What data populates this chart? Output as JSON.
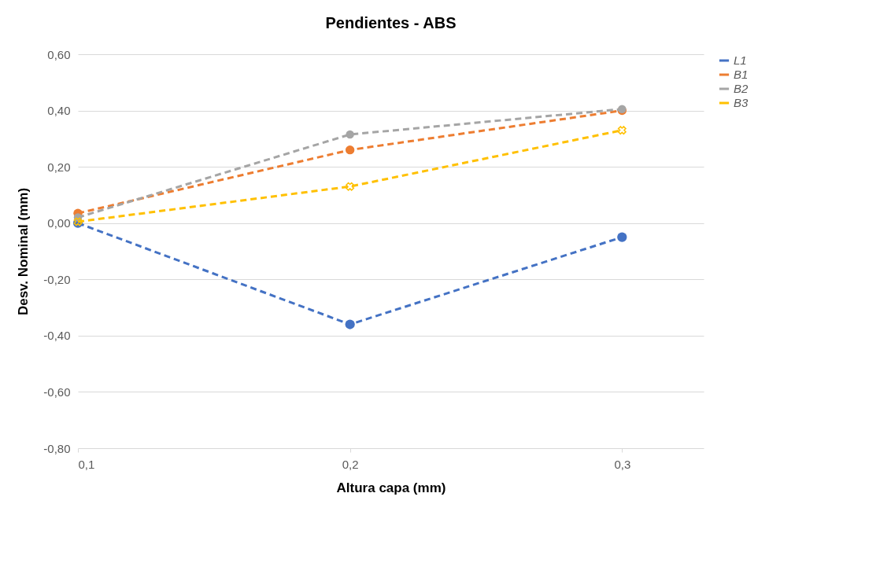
{
  "chart_data": {
    "type": "line",
    "title": "Pendientes - ABS",
    "xlabel": "Altura capa (mm)",
    "ylabel": "Desv. Nominal (mm)",
    "x": [
      0.1,
      0.2,
      0.3
    ],
    "series": [
      {
        "name": "L1",
        "color": "#4472c4",
        "values": [
          0.0,
          -0.36,
          -0.05
        ],
        "line_style": "dashed",
        "marker": "circle"
      },
      {
        "name": "B1",
        "color": "#ed7d31",
        "values": [
          0.035,
          0.26,
          0.4
        ],
        "line_style": "dashed",
        "marker": "circle"
      },
      {
        "name": "B2",
        "color": "#a5a5a5",
        "values": [
          0.02,
          0.315,
          0.405
        ],
        "line_style": "dashed",
        "marker": "circle"
      },
      {
        "name": "B3",
        "color": "#ffc000",
        "values": [
          0.005,
          0.13,
          0.33
        ],
        "line_style": "dashed",
        "marker": "cross"
      }
    ],
    "xlim": [
      0.1,
      0.33
    ],
    "xticks": [
      {
        "value": 0.1,
        "label": "0,1"
      },
      {
        "value": 0.2,
        "label": "0,2"
      },
      {
        "value": 0.3,
        "label": "0,3"
      }
    ],
    "ylim": [
      -0.8,
      0.6
    ],
    "yticks": [
      {
        "value": -0.8,
        "label": "-0,80"
      },
      {
        "value": -0.6,
        "label": "-0,60"
      },
      {
        "value": -0.4,
        "label": "-0,40"
      },
      {
        "value": -0.2,
        "label": "-0,20"
      },
      {
        "value": 0,
        "label": "0,00"
      },
      {
        "value": 0.2,
        "label": "0,20"
      },
      {
        "value": 0.4,
        "label": "0,40"
      },
      {
        "value": 0.6,
        "label": "0,60"
      }
    ],
    "grid": "y",
    "legend": "right"
  }
}
